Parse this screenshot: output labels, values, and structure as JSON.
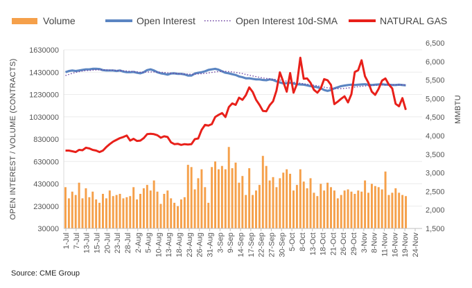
{
  "chart_data": {
    "type": "bar+line",
    "legend": [
      {
        "name": "Volume",
        "color": "#f5a04a",
        "kind": "bar"
      },
      {
        "name": "Open Interest",
        "color": "#5b85c2",
        "kind": "line"
      },
      {
        "name": "Open Interest 10d-SMA",
        "color": "#6b3fa0",
        "kind": "dotted"
      },
      {
        "name": "NATURAL GAS",
        "color": "#e8201a",
        "kind": "line"
      }
    ],
    "ylabel_left": "OPEN INTEREST / VOLUME (CONTRACTS)",
    "ylabel_right": "MMBTU",
    "ylim_left": [
      30000,
      1630000
    ],
    "ylim_right": [
      1500,
      6500
    ],
    "yticks_left": [
      "1630000",
      "1430000",
      "1230000",
      "1030000",
      "830000",
      "630000",
      "430000",
      "230000",
      "30000"
    ],
    "yticks_right": [
      "6,500",
      "6,000",
      "5,500",
      "5,000",
      "4,500",
      "4,000",
      "3,500",
      "3,000",
      "2,500",
      "2,000",
      "1,500"
    ],
    "x_ticks": [
      "1-Jul",
      "7-Jul",
      "13-Jul",
      "15-Jul",
      "20-Jul",
      "23-Jul",
      "28-Jul",
      "2-Aug",
      "5-Aug",
      "10-Aug",
      "13-Aug",
      "18-Aug",
      "23-Aug",
      "26-Aug",
      "31-Aug",
      "3-Sep",
      "9-Sep",
      "14-Sep",
      "17-Sep",
      "22-Sep",
      "27-Sep",
      "30-Sep",
      "5-Oct",
      "8-Oct",
      "13-Oct",
      "18-Oct",
      "21-Oct",
      "26-Oct",
      "29-Oct",
      "3-Nov",
      "8-Nov",
      "11-Nov",
      "16-Nov",
      "19-Nov",
      "24-Nov"
    ],
    "n_days": 101,
    "volume": [
      400000,
      300000,
      360000,
      330000,
      440000,
      300000,
      390000,
      310000,
      360000,
      290000,
      260000,
      340000,
      300000,
      370000,
      320000,
      330000,
      340000,
      300000,
      310000,
      320000,
      400000,
      290000,
      340000,
      390000,
      420000,
      370000,
      460000,
      360000,
      250000,
      340000,
      370000,
      300000,
      260000,
      230000,
      290000,
      310000,
      600000,
      580000,
      380000,
      480000,
      560000,
      400000,
      260000,
      580000,
      630000,
      560000,
      590000,
      560000,
      760000,
      570000,
      620000,
      440000,
      500000,
      330000,
      570000,
      330000,
      370000,
      420000,
      680000,
      590000,
      460000,
      490000,
      400000,
      480000,
      530000,
      560000,
      520000,
      370000,
      420000,
      560000,
      450000,
      390000,
      480000,
      350000,
      320000,
      430000,
      370000,
      440000,
      400000,
      370000,
      300000,
      330000,
      370000,
      380000,
      360000,
      340000,
      370000,
      360000,
      460000,
      350000,
      430000,
      410000,
      400000,
      380000,
      540000,
      330000,
      350000,
      390000,
      350000,
      330000,
      320000
    ],
    "open_interest": [
      1430000,
      1440000,
      1445000,
      1440000,
      1445000,
      1450000,
      1455000,
      1455000,
      1460000,
      1460000,
      1458000,
      1448000,
      1445000,
      1445000,
      1445000,
      1440000,
      1445000,
      1435000,
      1430000,
      1430000,
      1432000,
      1425000,
      1420000,
      1430000,
      1448000,
      1455000,
      1445000,
      1430000,
      1420000,
      1415000,
      1408000,
      1418000,
      1420000,
      1415000,
      1415000,
      1410000,
      1400000,
      1400000,
      1418000,
      1425000,
      1430000,
      1438000,
      1450000,
      1455000,
      1460000,
      1452000,
      1438000,
      1425000,
      1420000,
      1412000,
      1405000,
      1392000,
      1385000,
      1375000,
      1375000,
      1370000,
      1365000,
      1365000,
      1360000,
      1358000,
      1365000,
      1360000,
      1348000,
      1338000,
      1330000,
      1332000,
      1335000,
      1328000,
      1322000,
      1320000,
      1318000,
      1312000,
      1305000,
      1300000,
      1295000,
      1285000,
      1270000,
      1262000,
      1270000,
      1285000,
      1295000,
      1305000,
      1310000,
      1315000,
      1318000,
      1315000,
      1318000,
      1320000,
      1322000,
      1318000,
      1315000,
      1318000,
      1320000,
      1322000,
      1318000,
      1318000,
      1315000,
      1315000,
      1318000,
      1315000,
      1312000
    ],
    "open_interest_sma10": [
      1400000,
      1410000,
      1420000,
      1428000,
      1434000,
      1440000,
      1444000,
      1446000,
      1448000,
      1450000,
      1451000,
      1451000,
      1450000,
      1449000,
      1448000,
      1446000,
      1444000,
      1442000,
      1440000,
      1438000,
      1436000,
      1433000,
      1430000,
      1430000,
      1431000,
      1432000,
      1432000,
      1431000,
      1429000,
      1427000,
      1424000,
      1421000,
      1419000,
      1417000,
      1415000,
      1414000,
      1413000,
      1412000,
      1412000,
      1414000,
      1416000,
      1419000,
      1423000,
      1428000,
      1432000,
      1436000,
      1437000,
      1437000,
      1435000,
      1432000,
      1428000,
      1423000,
      1417000,
      1410000,
      1403000,
      1396000,
      1390000,
      1384000,
      1378000,
      1374000,
      1370000,
      1367000,
      1364000,
      1360000,
      1355000,
      1350000,
      1346000,
      1341000,
      1336000,
      1331000,
      1326000,
      1322000,
      1318000,
      1313000,
      1308000,
      1302000,
      1296000,
      1290000,
      1286000,
      1284000,
      1283000,
      1283000,
      1285000,
      1288000,
      1292000,
      1296000,
      1300000,
      1303000,
      1306000,
      1308000,
      1310000,
      1312000,
      1314000,
      1315000,
      1316000,
      1316000,
      1316000,
      1316000,
      1316000,
      1316000,
      1316000
    ],
    "natural_gas": [
      3680,
      3680,
      3660,
      3640,
      3700,
      3690,
      3760,
      3740,
      3700,
      3680,
      3640,
      3680,
      3780,
      3860,
      3930,
      3980,
      4030,
      4060,
      4100,
      3960,
      4010,
      3950,
      3960,
      4030,
      4140,
      4150,
      4140,
      4110,
      4040,
      4080,
      4060,
      3910,
      3860,
      3870,
      3840,
      3860,
      3850,
      3860,
      4000,
      4020,
      4260,
      4400,
      4380,
      4420,
      4620,
      4680,
      4730,
      4620,
      4900,
      5000,
      4960,
      5160,
      5100,
      5230,
      5450,
      5320,
      5100,
      4960,
      4790,
      4780,
      4950,
      5060,
      5360,
      5870,
      5600,
      5330,
      5850,
      5300,
      5540,
      6280,
      5690,
      5700,
      5580,
      5380,
      5300,
      5420,
      5680,
      5650,
      5520,
      4980,
      5050,
      5130,
      5200,
      5030,
      5260,
      5880,
      5930,
      6210,
      5760,
      5580,
      5330,
      5240,
      5410,
      5640,
      5700,
      5530,
      5420,
      4990,
      4920,
      5150,
      4820
    ]
  },
  "source": "Source: CME Group"
}
